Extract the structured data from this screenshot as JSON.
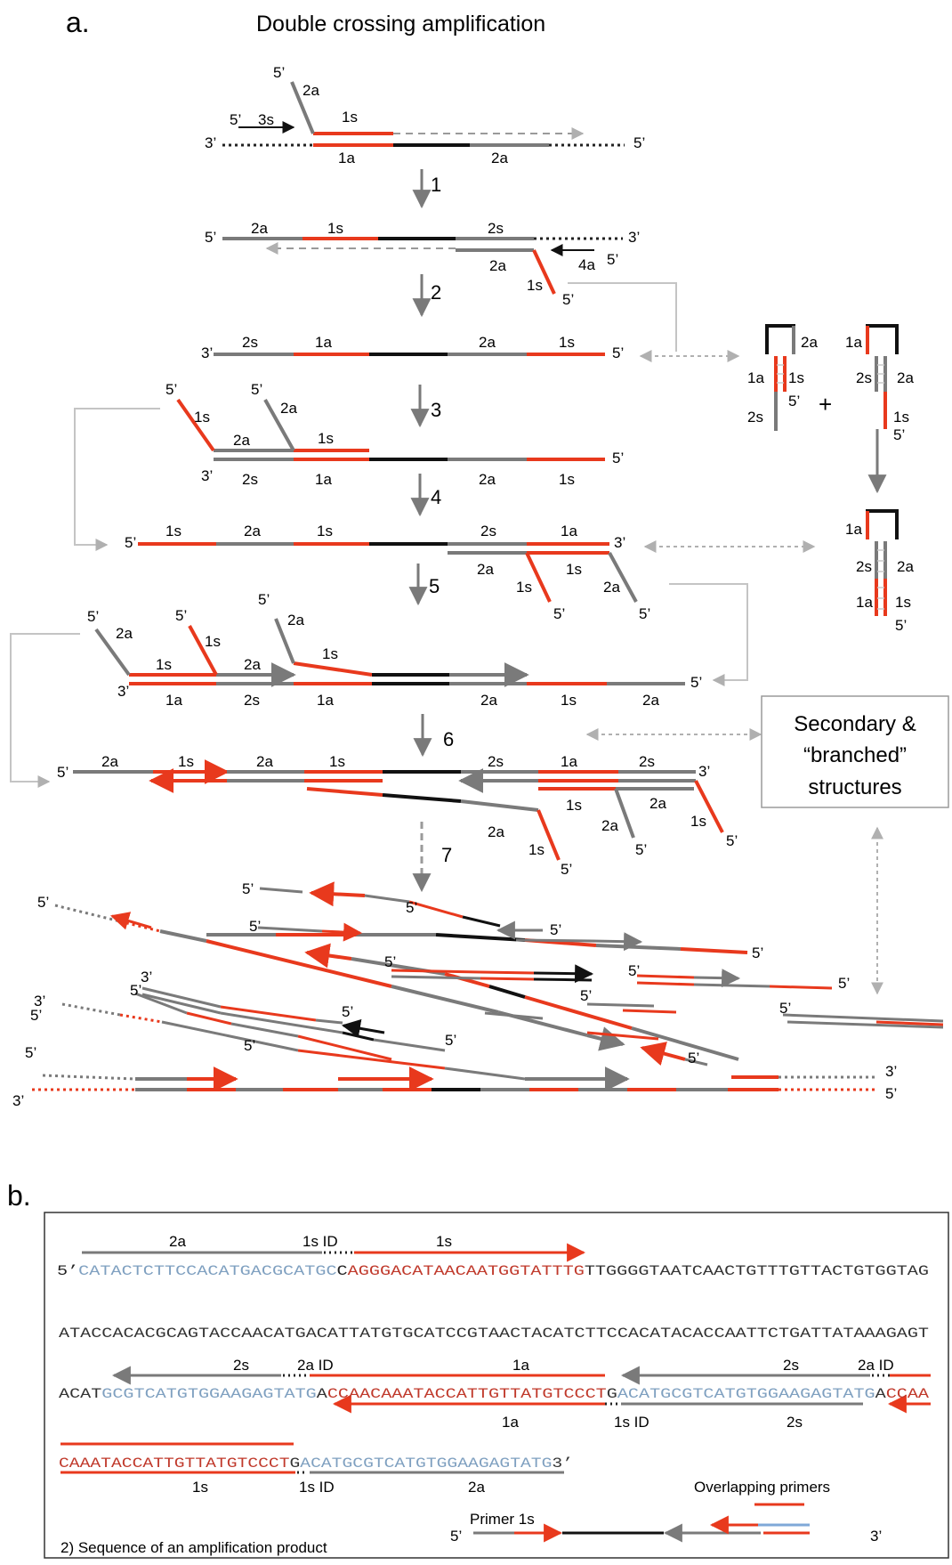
{
  "panel_a": {
    "label": "a.",
    "title": "Double crossing amplification",
    "steps": [
      "1",
      "2",
      "3",
      "4",
      "5",
      "6",
      "7"
    ],
    "structures_box": {
      "line1": "Secondary &",
      "line2": "“branched”",
      "line3": "structures"
    },
    "plus": "+",
    "labels": {
      "five": "5’",
      "three": "3’",
      "s1s": "1s",
      "s1a": "1a",
      "s2s": "2s",
      "s2a": "2a",
      "s3s": "3s",
      "s4a": "4a"
    }
  },
  "panel_b": {
    "label": "b.",
    "line1": {
      "p5": "5’",
      "blue": "CATACTCTTCCACATGACGCATGC",
      "c": "C",
      "red": "AGGGACATAACAATGGTATTTG",
      "black": "TTGGGGTAATCAACTGTTTGTTACTGTGGTAG",
      "lab_2a": "2a",
      "lab_1sid": "1s ID",
      "lab_1s": "1s"
    },
    "line2": "ATACCACACGCAGTACCAACATGACATTATGTGCATCCGTAACTACATCTTCCACATACACCAATTCTGATTATAAAGAGT",
    "line3": {
      "black1": "ACAT",
      "blue1": "GCGTCATGTGGAAGAGTATG",
      "a1": "A",
      "red1": "CCAACAAATACCATTGTTATGTCCCT",
      "g1": "G",
      "blue2": "ACATGCGTCATGTGGAAGAGTATG",
      "a2": "A",
      "red2": "CCAA",
      "lab_2s": "2s",
      "lab_2aid": "2a ID",
      "lab_1a": "1a",
      "lab_1a_below": "1a",
      "lab_1sid": "1s ID",
      "lab_2s_b": "2s",
      "lab_2s_below": "2s",
      "lab_2aid_b": "2a ID"
    },
    "line4": {
      "red": "CAAATACCATTGTTATGTCCCT",
      "g": "G",
      "blue": "ACATGCGTCATGTGGAAGAGTATG",
      "p3": "3’",
      "lab_1s": "1s",
      "lab_1sid": "1s ID",
      "lab_2a": "2a"
    },
    "overlapping_primers": "Overlapping primers",
    "primer_1s": "Primer 1s",
    "p5": "5’",
    "p3": "3’",
    "caption": "2) Sequence of an amplification product"
  }
}
